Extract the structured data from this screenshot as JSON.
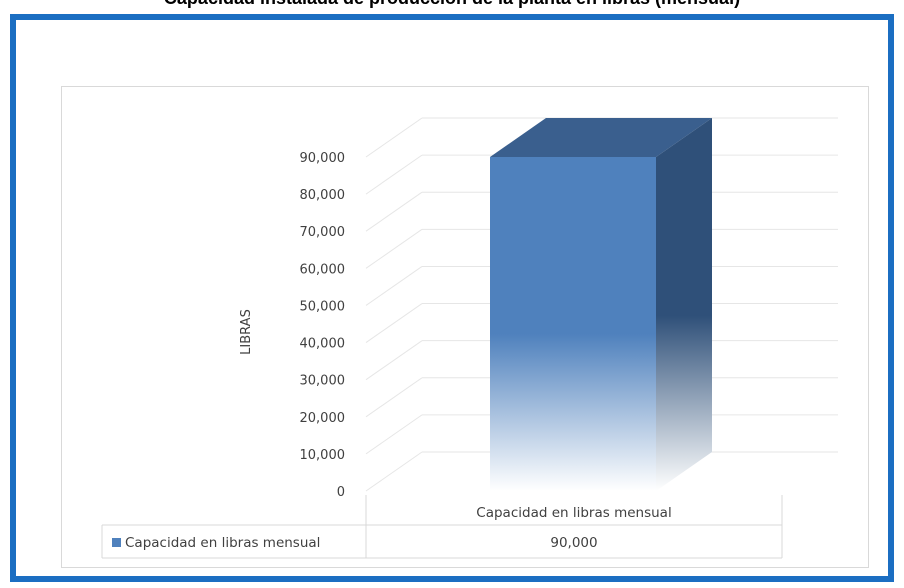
{
  "page": {
    "title": "Capacidad instalada de producción de la planta en libras (mensual)"
  },
  "chart_data": {
    "type": "bar",
    "categories": [
      "Capacidad en libras mensual"
    ],
    "series": [
      {
        "name": "Capacidad en libras mensual",
        "values": [
          90000
        ]
      }
    ],
    "ylabel": "LIBRAS",
    "ylim": [
      0,
      90000
    ],
    "yticks": [
      "0",
      "10,000",
      "20,000",
      "30,000",
      "40,000",
      "50,000",
      "60,000",
      "70,000",
      "80,000",
      "90,000"
    ],
    "data_table": {
      "row_label": "Capacidad en libras mensual",
      "values": [
        "90,000"
      ]
    },
    "colors": {
      "front": "#4f81bd",
      "top": "#3a5f8e",
      "side": "#2f5079",
      "legend_key": "#4f81bd",
      "frame": "#1b6ec2"
    },
    "grid": true,
    "legend": "data-table"
  }
}
